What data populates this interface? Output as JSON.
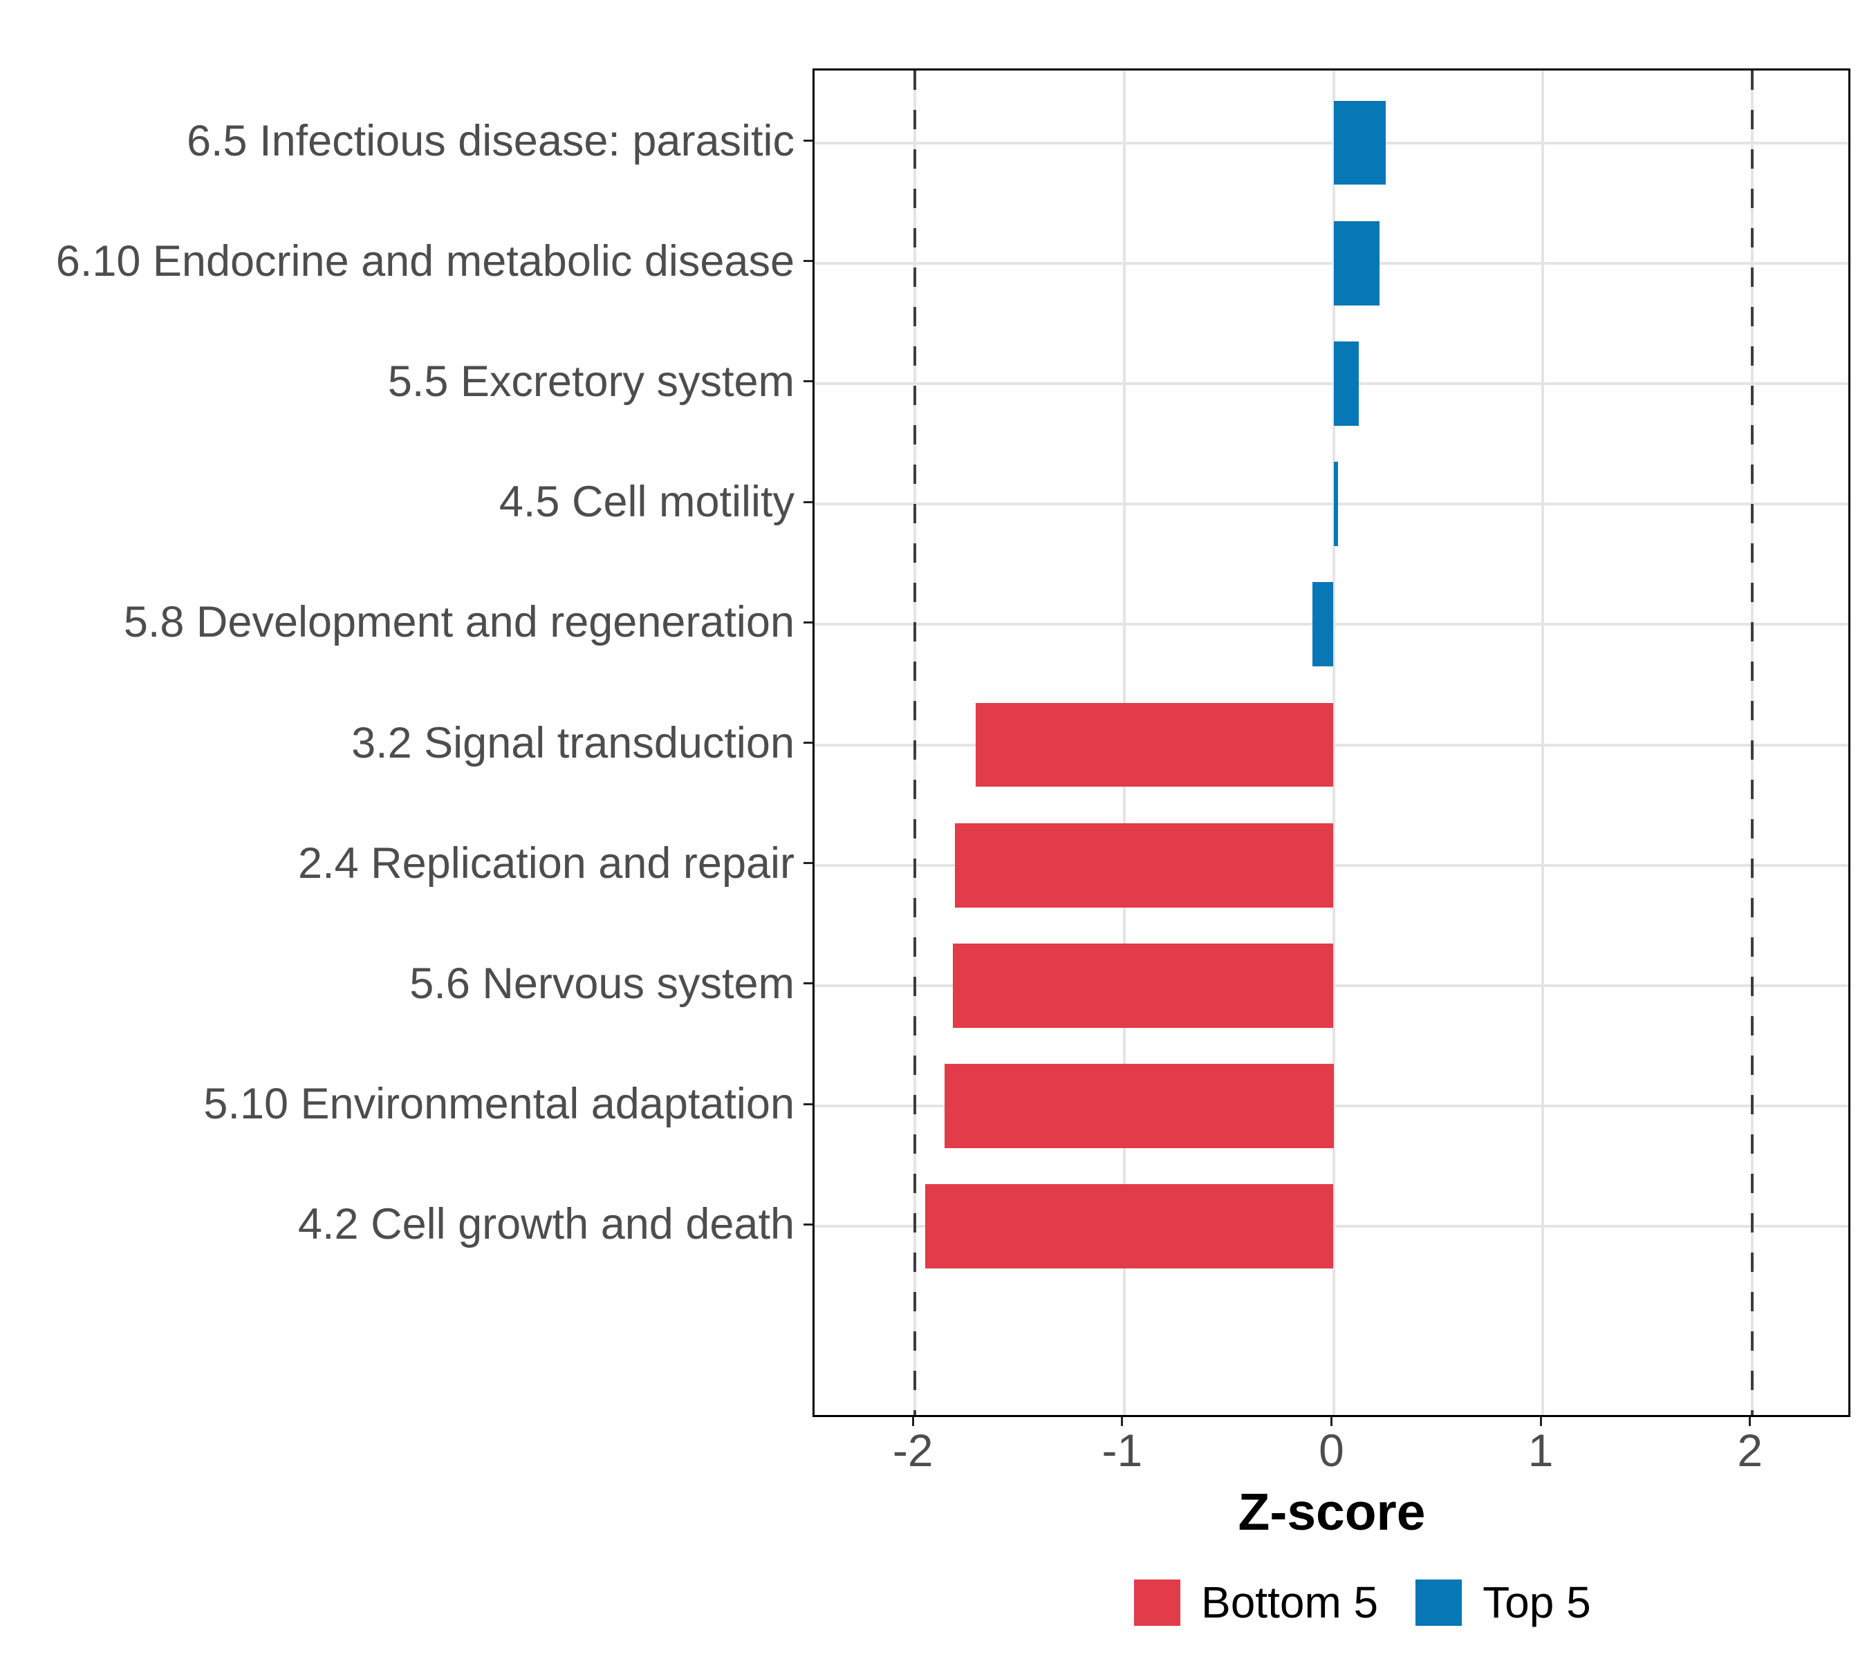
{
  "chart_data": {
    "type": "bar",
    "orientation": "horizontal",
    "title": "",
    "xlabel": "Z-score",
    "ylabel": "",
    "categories": [
      "6.5 Infectious disease: parasitic",
      "6.10 Endocrine and metabolic disease",
      "5.5 Excretory system",
      "4.5 Cell motility",
      "5.8 Development and regeneration",
      "3.2 Signal transduction",
      "2.4 Replication and repair",
      "5.6 Nervous system",
      "5.10 Environmental adaptation",
      "4.2 Cell growth and death"
    ],
    "values": [
      0.25,
      0.22,
      0.12,
      0.02,
      -0.1,
      -1.71,
      -1.81,
      -1.82,
      -1.86,
      -1.95
    ],
    "groups": [
      "Top 5",
      "Top 5",
      "Top 5",
      "Top 5",
      "Top 5",
      "Bottom 5",
      "Bottom 5",
      "Bottom 5",
      "Bottom 5",
      "Bottom 5"
    ],
    "series_colors": {
      "Bottom 5": "#E23B4A",
      "Top 5": "#0777B5"
    },
    "legend": [
      {
        "label": "Bottom 5",
        "color": "#E23B4A"
      },
      {
        "label": "Top 5",
        "color": "#0777B5"
      }
    ],
    "legend_position": "bottom",
    "x_ticks": [
      -2,
      -1,
      0,
      1,
      2
    ],
    "x_tick_labels": [
      "-2",
      "-1",
      "0",
      "1",
      "2"
    ],
    "xlim": [
      -2.48,
      2.48
    ],
    "reference_lines": [
      -2,
      2
    ],
    "grid": true,
    "bar_width_fraction": 0.7,
    "styles": {
      "grid_color": "#E4E4E4",
      "refline_color": "#3D3D3D",
      "axis_text_color": "#4D4D4D",
      "panel_border_color": "#000000",
      "background": "#ffffff"
    }
  }
}
